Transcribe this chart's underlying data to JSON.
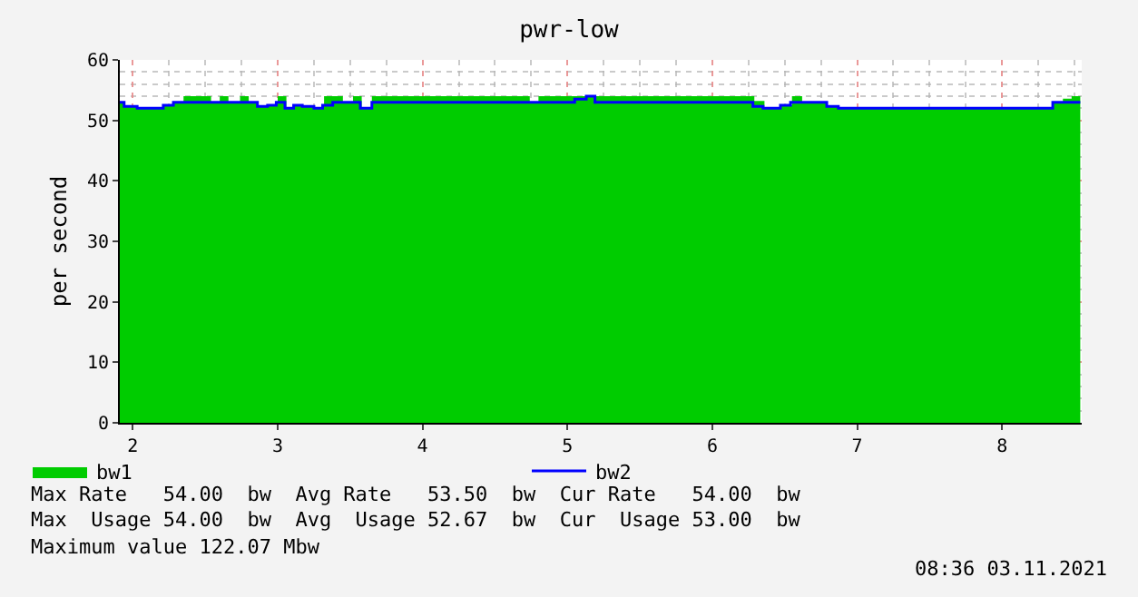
{
  "chart_data": {
    "type": "area",
    "title": "pwr-low",
    "ylabel": "per second",
    "xlim": [
      1.91,
      8.55
    ],
    "xticks": [
      2,
      3,
      4,
      5,
      6,
      7,
      8
    ],
    "ylim": [
      0,
      60
    ],
    "yticks": [
      0,
      10,
      20,
      30,
      40,
      50,
      60
    ],
    "grid": true,
    "legend": "bottom",
    "series": [
      {
        "name": "bw1",
        "color": "#00cc00",
        "x": [
          1.91,
          1.94,
          2.03,
          2.21,
          2.28,
          2.35,
          2.54,
          2.6,
          2.66,
          2.74,
          2.8,
          2.86,
          2.93,
          2.99,
          3.0,
          3.06,
          3.11,
          3.17,
          3.25,
          3.31,
          3.32,
          3.45,
          3.52,
          3.58,
          3.65,
          4.74,
          4.8,
          6.29,
          6.36,
          6.47,
          6.55,
          6.62,
          6.79,
          6.87,
          8.35,
          8.42,
          8.48,
          8.54
        ],
        "values": [
          53,
          52.3,
          52,
          52.5,
          53,
          54,
          53,
          54,
          53,
          54,
          53,
          52.3,
          52.5,
          53,
          54,
          52,
          52.5,
          52.3,
          52,
          52.5,
          54,
          53,
          54,
          52,
          54,
          53,
          54,
          53.2,
          52,
          52.5,
          54,
          53,
          52.3,
          52,
          53,
          53.6,
          54,
          54
        ]
      },
      {
        "name": "bw2",
        "type": "step",
        "color": "#0000ff",
        "x": [
          1.91,
          1.94,
          2.03,
          2.21,
          2.28,
          2.86,
          2.93,
          2.99,
          3.05,
          3.11,
          3.17,
          3.25,
          3.31,
          3.38,
          3.57,
          3.65,
          5.05,
          5.13,
          5.19,
          6.28,
          6.35,
          6.47,
          6.54,
          6.79,
          6.87,
          8.35,
          8.54
        ],
        "values": [
          53,
          52.3,
          52,
          52.5,
          53,
          52.3,
          52.5,
          53,
          52,
          52.5,
          52.3,
          52,
          52.5,
          53,
          52,
          53,
          53.5,
          54,
          53,
          52.3,
          52,
          52.5,
          53,
          52.3,
          52,
          53,
          53
        ]
      }
    ],
    "annotations": [
      "Max Rate   54.00  bw  Avg Rate   53.50  bw  Cur Rate   54.00  bw",
      "Max  Usage 54.00  bw  Avg  Usage 52.67  bw  Cur  Usage 53.00  bw",
      "Maximum value 122.07 Mbw",
      "08:36 03.11.2021"
    ]
  }
}
